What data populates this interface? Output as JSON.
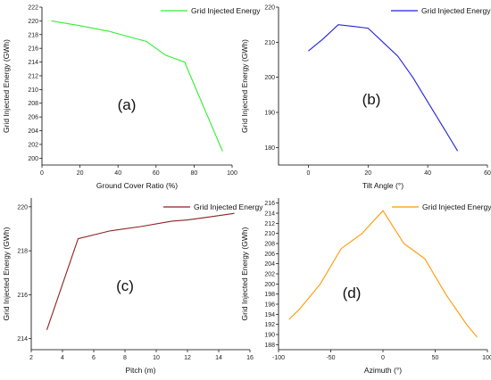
{
  "chart_data": [
    {
      "type": "line",
      "panel": "(a)",
      "xlabel": "Ground Cover Ratio (%)",
      "ylabel": "Grid Injected Energy (GWh)",
      "xlim": [
        0,
        100
      ],
      "ylim": [
        199,
        222
      ],
      "xticks": [
        "0",
        "20",
        "40",
        "60",
        "80",
        "100"
      ],
      "yticks": [
        "200",
        "202",
        "204",
        "206",
        "208",
        "210",
        "212",
        "214",
        "216",
        "218",
        "220",
        "222"
      ],
      "grid": false,
      "legend": "top-right",
      "series": [
        {
          "name": "Grid Injected Energy",
          "color": "#33ee33",
          "x": [
            5,
            20,
            35,
            55,
            65,
            75,
            85,
            95
          ],
          "y": [
            220,
            219.3,
            218.5,
            217,
            215,
            214,
            207.5,
            201
          ]
        }
      ]
    },
    {
      "type": "line",
      "panel": "(b)",
      "xlabel": "Tilt Angle (°)",
      "ylabel": "Grid Injected Energy (GWh)",
      "xlim": [
        -10,
        60
      ],
      "ylim": [
        175,
        220
      ],
      "xticks": [
        "0",
        "20",
        "40",
        "60"
      ],
      "yticks": [
        "180",
        "190",
        "200",
        "210",
        "220"
      ],
      "grid": false,
      "legend": "top-right",
      "series": [
        {
          "name": "Grid Injected Energy",
          "color": "#2222dd",
          "x": [
            0,
            5,
            10,
            15,
            20,
            25,
            30,
            35,
            40,
            45,
            50
          ],
          "y": [
            207.5,
            211,
            215,
            214.5,
            214,
            210,
            206,
            200,
            193,
            186,
            179
          ]
        }
      ]
    },
    {
      "type": "line",
      "panel": "(c)",
      "xlabel": "Pitch (m)",
      "ylabel": "Grid Injected Energy (GWh)",
      "xlim": [
        2,
        16
      ],
      "ylim": [
        213.5,
        220.4
      ],
      "xticks": [
        "2",
        "4",
        "6",
        "8",
        "10",
        "12",
        "14",
        "16"
      ],
      "yticks": [
        "214",
        "216",
        "218",
        "220"
      ],
      "grid": false,
      "legend": "top-right",
      "series": [
        {
          "name": "Grid Injected Energy",
          "color": "#8b2222",
          "x": [
            3,
            5,
            7,
            9,
            11,
            12,
            13,
            15
          ],
          "y": [
            214.4,
            218.55,
            218.9,
            219.1,
            219.35,
            219.4,
            219.5,
            219.7
          ]
        }
      ]
    },
    {
      "type": "line",
      "panel": "(d)",
      "xlabel": "Azimuth (°)",
      "ylabel": "Grid Injected Energy (GWh)",
      "xlim": [
        -100,
        100
      ],
      "ylim": [
        187,
        217
      ],
      "xticks": [
        "-100",
        "-50",
        "0",
        "50",
        "100"
      ],
      "yticks": [
        "188",
        "190",
        "192",
        "194",
        "196",
        "198",
        "200",
        "202",
        "204",
        "206",
        "208",
        "210",
        "212",
        "214",
        "216"
      ],
      "grid": false,
      "legend": "top-right",
      "series": [
        {
          "name": "Grid Injected Energy",
          "color": "#ff9900",
          "x": [
            -90,
            -80,
            -60,
            -40,
            -20,
            0,
            20,
            40,
            60,
            80,
            90
          ],
          "y": [
            193,
            195,
            200,
            207,
            210,
            214.5,
            208,
            205,
            198,
            192,
            189.5
          ]
        }
      ]
    }
  ]
}
